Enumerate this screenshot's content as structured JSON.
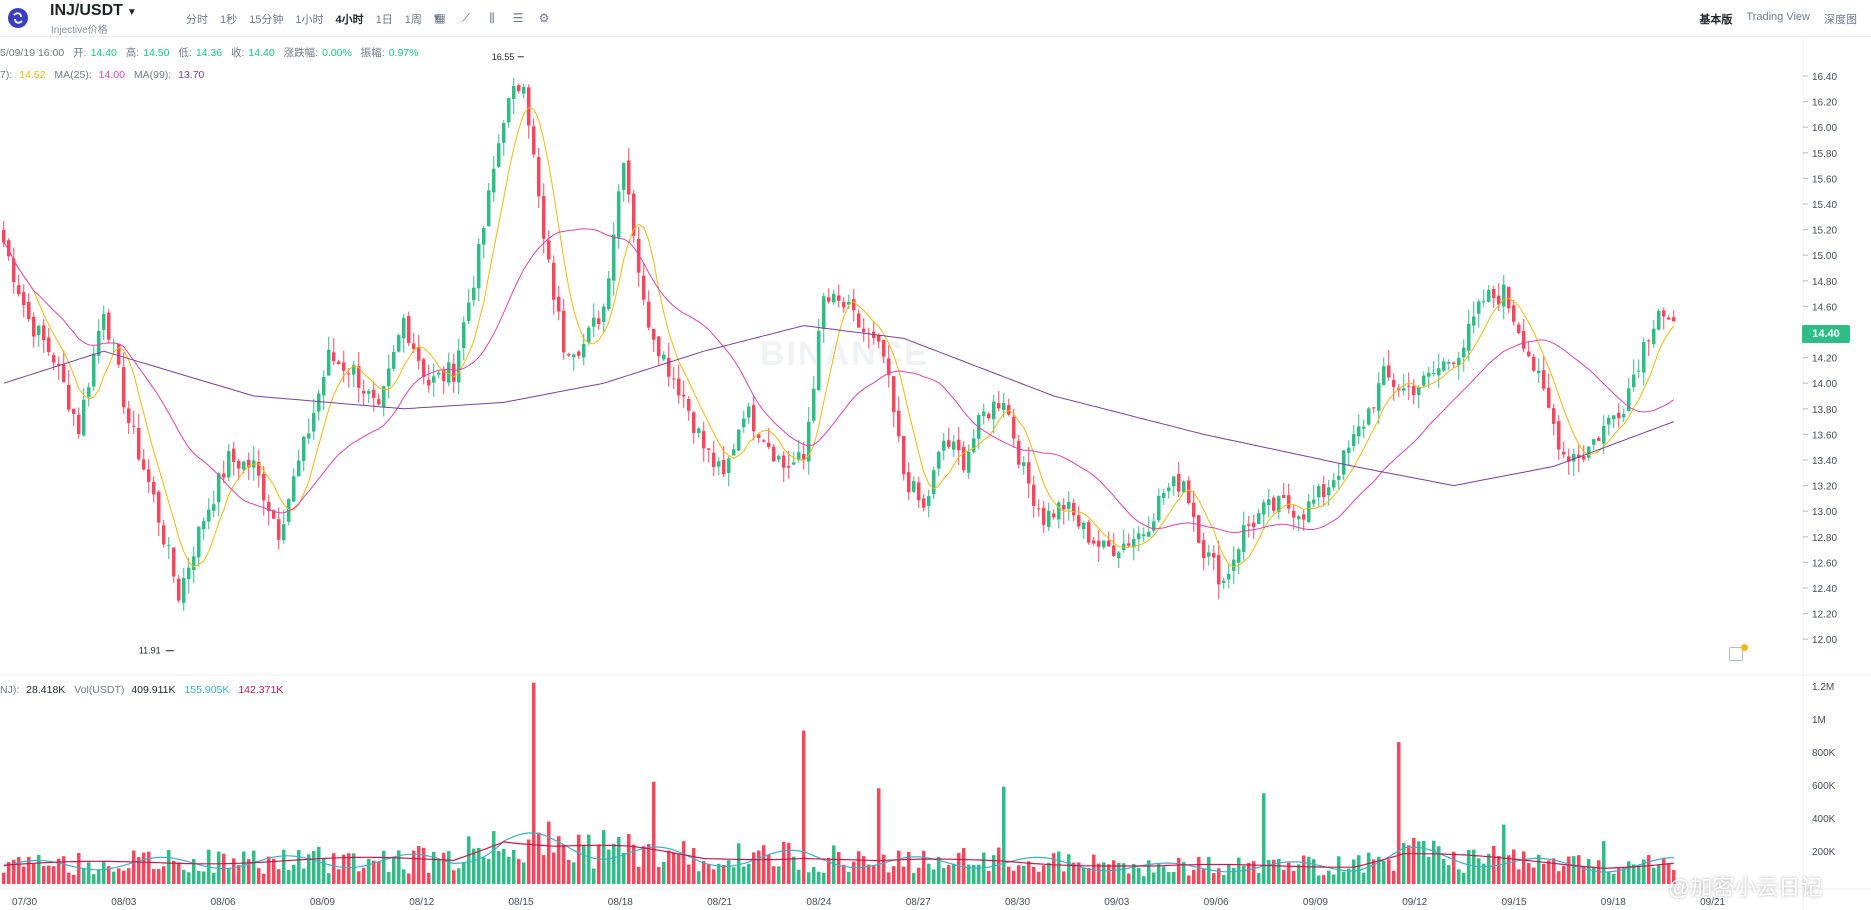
{
  "header": {
    "pair": "INJ/USDT",
    "subtitle": "Injective价格",
    "intervals": [
      "分时",
      "1秒",
      "15分钟",
      "1小时",
      "4小时",
      "1日",
      "1周"
    ],
    "active_interval": "4小时",
    "views": [
      "基本版",
      "Trading View",
      "深度图"
    ],
    "active_view": "基本版"
  },
  "ohlc": {
    "date": "5/09/19 16:00",
    "open_label": "开:",
    "open": "14.40",
    "high_label": "高:",
    "high": "14.50",
    "low_label": "低:",
    "low": "14.36",
    "close_label": "收:",
    "close": "14.40",
    "chg_label": "涨跌幅:",
    "chg": "0.00%",
    "amp_label": "振幅:",
    "amp": "0.97%"
  },
  "ma": {
    "ma7_label": "7):",
    "ma7": "14.52",
    "ma25_label": "MA(25):",
    "ma25": "14.00",
    "ma99_label": "MA(99):",
    "ma99": "13.70"
  },
  "volume_info": {
    "vol_label": "NJ):",
    "vol": "28.418K",
    "usdt_label": "Vol(USDT)",
    "usdt": "409.911K",
    "ma5": "155.905K",
    "ma10": "142.371K"
  },
  "current_price": "14.40",
  "watermark": "@加密小云日记",
  "background_mark": "BINANCE",
  "colors": {
    "up": "#2ebd85",
    "down": "#f6465d",
    "ma7": "#f0b90b",
    "ma25": "#e040b0",
    "ma99": "#7b3fa0",
    "vol_ma5": "#3ab0c8",
    "vol_ma10": "#c8174e"
  },
  "chart_data": {
    "type": "candlestick",
    "interval": "4h",
    "price_axis": {
      "ticks": [
        "16.40",
        "16.20",
        "16.00",
        "15.80",
        "15.60",
        "15.40",
        "15.20",
        "15.00",
        "14.80",
        "14.60",
        "14.40",
        "14.20",
        "14.00",
        "13.80",
        "13.60",
        "13.40",
        "13.20",
        "13.00",
        "12.80",
        "12.60",
        "12.40",
        "12.20",
        "12.00"
      ],
      "ylim": [
        11.85,
        16.62
      ]
    },
    "volume_axis": {
      "ticks": [
        "1.2M",
        "1M",
        "800K",
        "600K",
        "400K",
        "200K"
      ],
      "ylim": [
        0,
        1220000
      ]
    },
    "x_ticks": [
      "07/30",
      "08/03",
      "08/06",
      "08/09",
      "08/12",
      "08/15",
      "08/18",
      "08/21",
      "08/24",
      "08/27",
      "08/30",
      "09/03",
      "09/06",
      "09/09",
      "09/12",
      "09/15",
      "09/18",
      "09/21"
    ],
    "annotations": {
      "high": "16.55",
      "low": "11.91"
    },
    "close_anchors": [
      [
        0,
        15.1
      ],
      [
        5,
        14.5
      ],
      [
        10,
        14.2
      ],
      [
        15,
        13.65
      ],
      [
        20,
        14.6
      ],
      [
        25,
        13.7
      ],
      [
        30,
        13.1
      ],
      [
        35,
        12.35
      ],
      [
        40,
        12.95
      ],
      [
        45,
        13.4
      ],
      [
        50,
        13.35
      ],
      [
        55,
        12.85
      ],
      [
        60,
        13.5
      ],
      [
        65,
        14.2
      ],
      [
        70,
        14.1
      ],
      [
        75,
        13.75
      ],
      [
        80,
        14.5
      ],
      [
        85,
        14.0
      ],
      [
        90,
        14.1
      ],
      [
        95,
        15.0
      ],
      [
        100,
        16.1
      ],
      [
        104,
        16.4
      ],
      [
        108,
        15.1
      ],
      [
        112,
        14.3
      ],
      [
        116,
        14.3
      ],
      [
        120,
        14.6
      ],
      [
        124,
        15.8
      ],
      [
        128,
        14.6
      ],
      [
        132,
        14.2
      ],
      [
        136,
        13.9
      ],
      [
        140,
        13.5
      ],
      [
        144,
        13.25
      ],
      [
        148,
        13.8
      ],
      [
        152,
        13.6
      ],
      [
        156,
        13.35
      ],
      [
        160,
        13.4
      ],
      [
        164,
        14.65
      ],
      [
        168,
        14.6
      ],
      [
        172,
        14.4
      ],
      [
        176,
        14.2
      ],
      [
        180,
        13.3
      ],
      [
        184,
        13.0
      ],
      [
        188,
        13.55
      ],
      [
        192,
        13.4
      ],
      [
        196,
        13.75
      ],
      [
        200,
        13.9
      ],
      [
        204,
        13.3
      ],
      [
        208,
        12.95
      ],
      [
        212,
        13.05
      ],
      [
        216,
        12.85
      ],
      [
        220,
        12.7
      ],
      [
        224,
        12.75
      ],
      [
        228,
        12.85
      ],
      [
        232,
        13.15
      ],
      [
        236,
        13.25
      ],
      [
        240,
        12.7
      ],
      [
        244,
        12.45
      ],
      [
        248,
        12.85
      ],
      [
        252,
        13.0
      ],
      [
        256,
        13.05
      ],
      [
        260,
        13.0
      ],
      [
        264,
        13.15
      ],
      [
        268,
        13.4
      ],
      [
        272,
        13.7
      ],
      [
        276,
        14.05
      ],
      [
        280,
        13.95
      ],
      [
        284,
        14.0
      ],
      [
        288,
        14.15
      ],
      [
        292,
        14.3
      ],
      [
        296,
        14.65
      ],
      [
        300,
        14.7
      ],
      [
        304,
        14.35
      ],
      [
        308,
        13.9
      ],
      [
        312,
        13.45
      ],
      [
        316,
        13.45
      ],
      [
        320,
        13.65
      ],
      [
        324,
        13.85
      ],
      [
        328,
        14.3
      ],
      [
        331,
        14.6
      ],
      [
        334,
        14.4
      ]
    ],
    "volume_levels": [
      [
        0,
        120000
      ],
      [
        30,
        140000
      ],
      [
        90,
        160000
      ],
      [
        100,
        300000
      ],
      [
        110,
        250000
      ],
      [
        125,
        220000
      ],
      [
        140,
        160000
      ],
      [
        160,
        180000
      ],
      [
        175,
        140000
      ],
      [
        200,
        150000
      ],
      [
        230,
        110000
      ],
      [
        270,
        120000
      ],
      [
        280,
        200000
      ],
      [
        300,
        150000
      ],
      [
        320,
        110000
      ],
      [
        334,
        140000
      ]
    ],
    "volume_spikes": [
      [
        106,
        1220000
      ],
      [
        130,
        620000
      ],
      [
        160,
        930000
      ],
      [
        175,
        580000
      ],
      [
        200,
        590000
      ],
      [
        252,
        550000
      ],
      [
        279,
        860000
      ],
      [
        300,
        360000
      ],
      [
        320,
        260000
      ]
    ],
    "ma99_anchors": [
      [
        0,
        14.0
      ],
      [
        20,
        14.25
      ],
      [
        50,
        13.9
      ],
      [
        80,
        13.8
      ],
      [
        100,
        13.85
      ],
      [
        120,
        14.0
      ],
      [
        140,
        14.25
      ],
      [
        160,
        14.45
      ],
      [
        180,
        14.35
      ],
      [
        210,
        13.9
      ],
      [
        240,
        13.6
      ],
      [
        270,
        13.35
      ],
      [
        290,
        13.2
      ],
      [
        310,
        13.35
      ],
      [
        334,
        13.7
      ]
    ]
  }
}
